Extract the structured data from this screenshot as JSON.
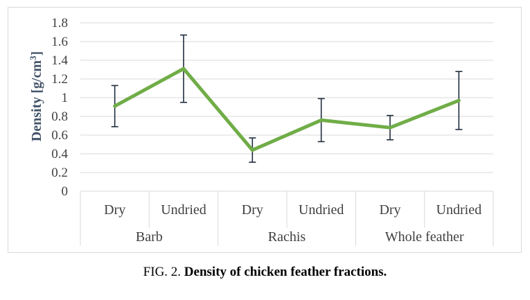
{
  "chart_data": {
    "type": "line",
    "ylabel": "Density [g/cm³]",
    "ylabel_main": "Density [g/cm",
    "ylabel_sup": "3",
    "ylabel_end": "]",
    "ylim": [
      0,
      1.8
    ],
    "yticks": [
      "0",
      "0.2",
      "0.4",
      "0.6",
      "0.8",
      "1",
      "1.2",
      "1.4",
      "1.6",
      "1.8"
    ],
    "ytick_values": [
      0,
      0.2,
      0.4,
      0.6,
      0.8,
      1.0,
      1.2,
      1.4,
      1.6,
      1.8
    ],
    "grid": true,
    "legend": "none",
    "line_color": "#70ad47",
    "errorbar_color": "#1f2d3d",
    "categories": [
      "Dry",
      "Undried",
      "Dry",
      "Undried",
      "Dry",
      "Undried"
    ],
    "groups": [
      "Barb",
      "Rachis",
      "Whole feather"
    ],
    "values": [
      0.91,
      1.31,
      0.44,
      0.76,
      0.68,
      0.97
    ],
    "error_high": [
      1.13,
      1.67,
      0.57,
      0.99,
      0.81,
      1.28
    ],
    "error_low": [
      0.69,
      0.95,
      0.31,
      0.53,
      0.55,
      0.66
    ]
  },
  "caption": {
    "prefix": "FIG. 2. ",
    "title": "Density of chicken feather fractions."
  }
}
